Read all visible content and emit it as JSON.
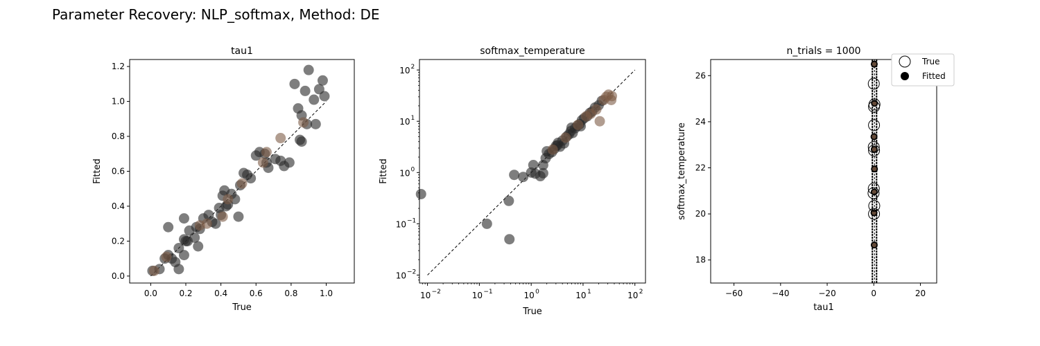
{
  "suptitle": "Parameter Recovery: NLP_softmax, Method: DE",
  "chart_data": [
    {
      "type": "scatter",
      "title": "tau1",
      "xlabel": "True",
      "ylabel": "Fitted",
      "xlim": [
        -0.12,
        1.16
      ],
      "ylim": [
        -0.04,
        1.24
      ],
      "xticks": [
        0.0,
        0.2,
        0.4,
        0.6,
        0.8,
        1.0
      ],
      "xtick_labels": [
        "0.0",
        "0.2",
        "0.4",
        "0.6",
        "0.8",
        "1.0"
      ],
      "yticks": [
        0.0,
        0.2,
        0.4,
        0.6,
        0.8,
        1.0,
        1.2
      ],
      "ytick_labels": [
        "0.0",
        "0.2",
        "0.4",
        "0.6",
        "0.8",
        "1.0",
        "1.2"
      ],
      "identity_line": [
        0,
        1
      ],
      "points_gray": [
        [
          0.01,
          0.03
        ],
        [
          0.05,
          0.04
        ],
        [
          0.08,
          0.1
        ],
        [
          0.1,
          0.28
        ],
        [
          0.1,
          0.12
        ],
        [
          0.12,
          0.1
        ],
        [
          0.14,
          0.08
        ],
        [
          0.16,
          0.16
        ],
        [
          0.16,
          0.04
        ],
        [
          0.19,
          0.33
        ],
        [
          0.19,
          0.21
        ],
        [
          0.19,
          0.12
        ],
        [
          0.2,
          0.2
        ],
        [
          0.21,
          0.2
        ],
        [
          0.22,
          0.26
        ],
        [
          0.25,
          0.22
        ],
        [
          0.26,
          0.28
        ],
        [
          0.27,
          0.17
        ],
        [
          0.28,
          0.27
        ],
        [
          0.3,
          0.33
        ],
        [
          0.33,
          0.35
        ],
        [
          0.35,
          0.31
        ],
        [
          0.37,
          0.3
        ],
        [
          0.39,
          0.39
        ],
        [
          0.4,
          0.35
        ],
        [
          0.41,
          0.46
        ],
        [
          0.42,
          0.49
        ],
        [
          0.43,
          0.4
        ],
        [
          0.44,
          0.41
        ],
        [
          0.46,
          0.47
        ],
        [
          0.48,
          0.44
        ],
        [
          0.5,
          0.34
        ],
        [
          0.51,
          0.52
        ],
        [
          0.53,
          0.59
        ],
        [
          0.55,
          0.58
        ],
        [
          0.57,
          0.56
        ],
        [
          0.6,
          0.69
        ],
        [
          0.62,
          0.71
        ],
        [
          0.65,
          0.7
        ],
        [
          0.66,
          0.65
        ],
        [
          0.67,
          0.62
        ],
        [
          0.74,
          0.66
        ],
        [
          0.76,
          0.63
        ],
        [
          0.79,
          0.65
        ],
        [
          0.82,
          1.1
        ],
        [
          0.84,
          0.96
        ],
        [
          0.85,
          0.78
        ],
        [
          0.86,
          0.92
        ],
        [
          0.88,
          1.06
        ],
        [
          0.89,
          0.87
        ],
        [
          0.9,
          1.18
        ],
        [
          0.93,
          1.01
        ],
        [
          0.94,
          0.87
        ],
        [
          0.96,
          1.07
        ],
        [
          0.98,
          1.12
        ],
        [
          0.99,
          1.03
        ],
        [
          0.86,
          0.77
        ],
        [
          0.71,
          0.67
        ]
      ],
      "points_brown": [
        [
          0.02,
          0.03
        ],
        [
          0.09,
          0.11
        ],
        [
          0.28,
          0.29
        ],
        [
          0.41,
          0.34
        ],
        [
          0.44,
          0.44
        ],
        [
          0.64,
          0.65
        ],
        [
          0.66,
          0.71
        ],
        [
          0.74,
          0.79
        ],
        [
          0.87,
          0.88
        ],
        [
          0.52,
          0.53
        ],
        [
          0.32,
          0.3
        ]
      ]
    },
    {
      "type": "scatter",
      "title": "softmax_temperature",
      "xlabel": "True",
      "ylabel": "Fitted",
      "xscale": "log",
      "yscale": "log",
      "xlim": [
        0.007,
        160
      ],
      "ylim": [
        0.007,
        160
      ],
      "ticks": [
        0.01,
        0.1,
        1,
        10,
        100
      ],
      "tick_labels": [
        "10",
        "10",
        "10",
        "10",
        "10"
      ],
      "tick_exponents": [
        "−2",
        "−1",
        "0",
        "1",
        "2"
      ],
      "identity_line": [
        0.01,
        100
      ],
      "points_gray": [
        [
          0.0075,
          0.38
        ],
        [
          0.14,
          0.1
        ],
        [
          0.37,
          0.28
        ],
        [
          0.38,
          0.05
        ],
        [
          0.47,
          0.9
        ],
        [
          0.7,
          0.82
        ],
        [
          1.0,
          1.0
        ],
        [
          1.1,
          1.4
        ],
        [
          1.2,
          0.95
        ],
        [
          1.5,
          0.85
        ],
        [
          1.7,
          0.97
        ],
        [
          1.7,
          1.4
        ],
        [
          1.9,
          1.9
        ],
        [
          2.2,
          2.3
        ],
        [
          2.5,
          2.5
        ],
        [
          2.8,
          2.9
        ],
        [
          3.0,
          3.3
        ],
        [
          3.3,
          3.8
        ],
        [
          3.6,
          3.2
        ],
        [
          4.0,
          4.2
        ],
        [
          4.3,
          3.7
        ],
        [
          4.8,
          5.0
        ],
        [
          5.3,
          5.5
        ],
        [
          5.8,
          6.4
        ],
        [
          6.3,
          5.9
        ],
        [
          7.0,
          7.3
        ],
        [
          7.8,
          8.2
        ],
        [
          8.6,
          8.8
        ],
        [
          9.5,
          10.5
        ],
        [
          10.5,
          11.5
        ],
        [
          12.0,
          12.5
        ],
        [
          13.5,
          14.5
        ],
        [
          15.0,
          15.5
        ],
        [
          17.0,
          18.5
        ],
        [
          20.0,
          20.5
        ],
        [
          23.0,
          25.0
        ],
        [
          2.0,
          2.6
        ],
        [
          3.2,
          3.4
        ],
        [
          6.0,
          7.5
        ],
        [
          9.0,
          8.0
        ]
      ],
      "points_brown": [
        [
          2.6,
          2.8
        ],
        [
          4.6,
          4.8
        ],
        [
          8.0,
          8.5
        ],
        [
          11.5,
          12.5
        ],
        [
          14.0,
          14.0
        ],
        [
          18.0,
          17.0
        ],
        [
          21.0,
          10.0
        ],
        [
          25.0,
          26.0
        ],
        [
          28.0,
          30.0
        ],
        [
          31.0,
          33.0
        ],
        [
          35.0,
          26.0
        ],
        [
          36.0,
          31.0
        ]
      ]
    },
    {
      "type": "scatter",
      "title": "n_trials = 1000",
      "xlabel": "tau1",
      "ylabel": "softmax_temperature",
      "xlim": [
        -70,
        27
      ],
      "ylim": [
        17,
        26.7
      ],
      "xticks": [
        -60,
        -40,
        -20,
        0,
        20
      ],
      "xtick_labels": [
        "−60",
        "−40",
        "−20",
        "0",
        "20"
      ],
      "yticks": [
        18,
        20,
        22,
        24,
        26
      ],
      "ytick_labels": [
        "18",
        "20",
        "22",
        "24",
        "26"
      ],
      "legend": {
        "placement": "top-right",
        "entries": [
          "True",
          "Fitted"
        ]
      },
      "true_points": [
        [
          0.0,
          25.65
        ],
        [
          0.1,
          24.65
        ],
        [
          0.3,
          24.75
        ],
        [
          0.1,
          23.85
        ],
        [
          0.0,
          22.9
        ],
        [
          0.1,
          22.75
        ],
        [
          0.0,
          21.1
        ],
        [
          -0.1,
          20.9
        ],
        [
          0.2,
          20.35
        ],
        [
          0.1,
          20.0
        ]
      ],
      "fitted_points": [
        [
          0.2,
          26.5
        ],
        [
          0.3,
          24.8
        ],
        [
          0.1,
          23.35
        ],
        [
          0.2,
          22.8
        ],
        [
          0.3,
          21.95
        ],
        [
          0.2,
          20.95
        ],
        [
          0.1,
          20.05
        ],
        [
          0.2,
          18.65
        ]
      ],
      "line_endpoints": [
        -0.6,
        1.2
      ]
    }
  ]
}
